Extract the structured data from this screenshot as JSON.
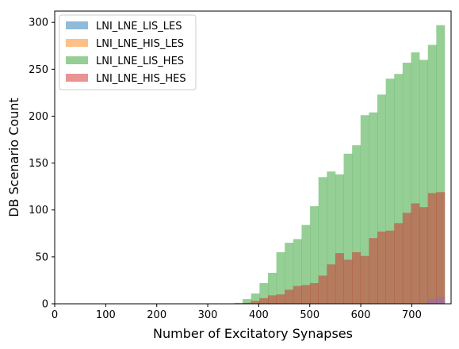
{
  "chart_data": {
    "type": "histogram",
    "title": "",
    "xlabel": "Number of Excitatory Synapses",
    "ylabel": "DB Scenario Count",
    "xlim": [
      0,
      777
    ],
    "ylim": [
      0,
      312
    ],
    "x_ticks": [
      0,
      100,
      200,
      300,
      400,
      500,
      600,
      700
    ],
    "y_ticks": [
      0,
      50,
      100,
      150,
      200,
      250,
      300
    ],
    "bin_width": 16.5,
    "legend": {
      "position": "top-left",
      "entries": [
        "LNI_LNE_LIS_LES",
        "LNI_LNE_HIS_LES",
        "LNI_LNE_LIS_HES",
        "LNI_LNE_HIS_HES"
      ]
    },
    "series": [
      {
        "name": "LNI_LNE_LIS_LES",
        "color": "#1f77b4",
        "opacity": 0.5,
        "bin_starts": [
          0
        ],
        "values": [
          0
        ]
      },
      {
        "name": "LNI_LNE_HIS_LES",
        "color": "#ff7f0e",
        "opacity": 0.5,
        "bin_starts": [
          0
        ],
        "values": [
          0
        ]
      },
      {
        "name": "LNI_LNE_LIS_HES",
        "color": "#2ca02c",
        "opacity": 0.5,
        "bin_starts": [
          352,
          368.5,
          385,
          401.5,
          418,
          434.5,
          451,
          467.5,
          484,
          500.5,
          517,
          533.5,
          550,
          566.5,
          583,
          599.5,
          616,
          632.5,
          649,
          665.5,
          682,
          698.5,
          715,
          731.5,
          748
        ],
        "values": [
          1,
          5,
          11,
          22,
          33,
          55,
          65,
          69,
          84,
          104,
          135,
          141,
          138,
          160,
          169,
          201,
          204,
          223,
          240,
          245,
          257,
          268,
          260,
          276,
          297
        ]
      },
      {
        "name": "LNI_LNE_HIS_HES",
        "color": "#d62728",
        "opacity": 0.5,
        "bin_starts": [
          352,
          368.5,
          385,
          401.5,
          418,
          434.5,
          451,
          467.5,
          484,
          500.5,
          517,
          533.5,
          550,
          566.5,
          583,
          599.5,
          616,
          632.5,
          649,
          665.5,
          682,
          698.5,
          715,
          731.5,
          748
        ],
        "values": [
          0,
          1,
          3,
          6,
          9,
          10,
          15,
          19,
          20,
          22,
          30,
          42,
          54,
          47,
          55,
          51,
          70,
          77,
          78,
          86,
          97,
          107,
          103,
          118,
          119
        ]
      },
      {
        "name": "",
        "color": "#9467bd",
        "opacity": 0.5,
        "bin_starts": [
          731.5,
          748
        ],
        "values": [
          5,
          7
        ]
      }
    ]
  }
}
